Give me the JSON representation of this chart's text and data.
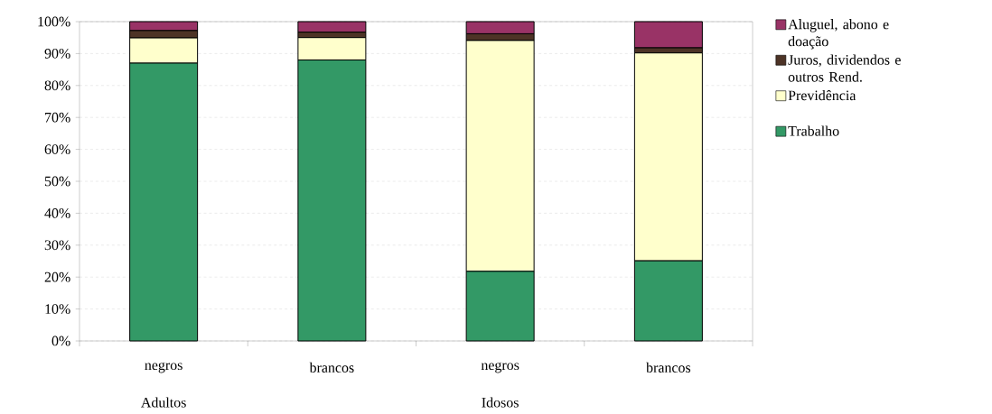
{
  "chart_data": {
    "type": "bar",
    "stacked": true,
    "categories": [
      "negros",
      "brancos",
      "negros",
      "brancos"
    ],
    "annotations": [
      "Adultos",
      "Idosos"
    ],
    "series": [
      {
        "name": "Trabalho",
        "color": "#339966",
        "values": [
          87.0,
          88.0,
          21.8,
          25.1
        ]
      },
      {
        "name": "Previdência",
        "color": "#ffffcc",
        "values": [
          7.9,
          7.0,
          72.3,
          65.1
        ]
      },
      {
        "name": "Juros, dividendos e outros Rend.",
        "color": "#4d3326",
        "values": [
          2.3,
          1.7,
          2.1,
          1.6
        ]
      },
      {
        "name": "Aluguel, abono e doação",
        "color": "#993366",
        "values": [
          2.8,
          3.3,
          3.8,
          8.2
        ]
      }
    ],
    "ylim": [
      0,
      100
    ],
    "yticks": [
      {
        "value": 0,
        "label": "0%"
      },
      {
        "value": 10,
        "label": "10%"
      },
      {
        "value": 20,
        "label": "20%"
      },
      {
        "value": 30,
        "label": "30%"
      },
      {
        "value": 40,
        "label": "40%"
      },
      {
        "value": 50,
        "label": "50%"
      },
      {
        "value": 60,
        "label": "60%"
      },
      {
        "value": 70,
        "label": "70%"
      },
      {
        "value": 80,
        "label": "80%"
      },
      {
        "value": 90,
        "label": "90%"
      },
      {
        "value": 100,
        "label": "100%"
      }
    ],
    "grid": "y",
    "legend": "right"
  }
}
